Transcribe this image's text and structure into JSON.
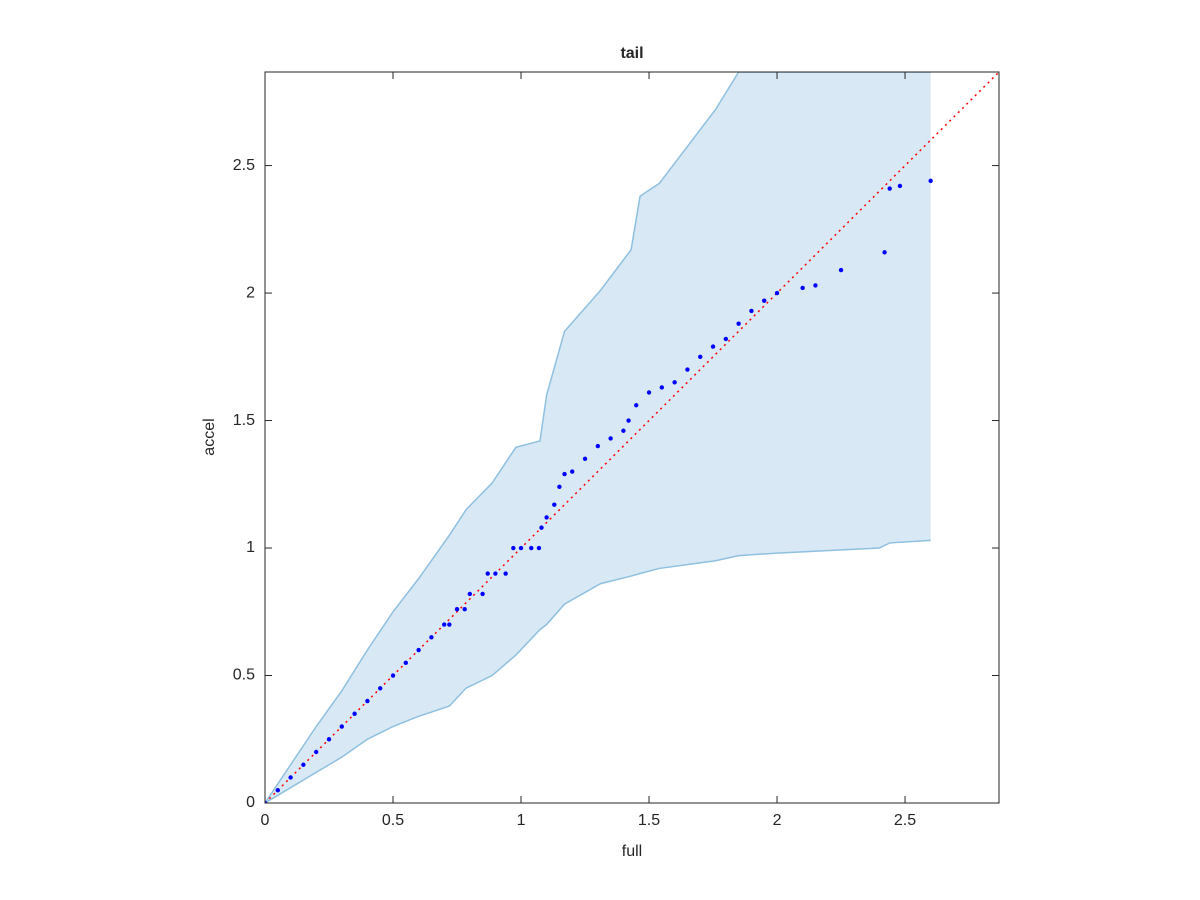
{
  "chart_data": {
    "type": "scatter",
    "title": "tail",
    "xlabel": "full",
    "ylabel": "accel",
    "xlim": [
      0,
      2.867
    ],
    "ylim": [
      0,
      2.867
    ],
    "xticks": [
      0,
      0.5,
      1,
      1.5,
      2,
      2.5
    ],
    "yticks": [
      0,
      0.5,
      1,
      1.5,
      2,
      2.5
    ],
    "series": [
      {
        "color": "#0000ff",
        "x": [
          0,
          0.05,
          0.1,
          0.15,
          0.2,
          0.25,
          0.3,
          0.35,
          0.4,
          0.45,
          0.5,
          0.55,
          0.6,
          0.65,
          0.7,
          0.72,
          0.75,
          0.78,
          0.8,
          0.85,
          0.87,
          0.9,
          0.94,
          0.97,
          1.0,
          1.04,
          1.07,
          1.08,
          1.1,
          1.13,
          1.15,
          1.17,
          1.2,
          1.25,
          1.3,
          1.35,
          1.4,
          1.42,
          1.45,
          1.5,
          1.55,
          1.6,
          1.65,
          1.7,
          1.75,
          1.8,
          1.85,
          1.9,
          1.95,
          2.0,
          2.1,
          2.15,
          2.25,
          2.42,
          2.44,
          2.48,
          2.6
        ],
        "values": [
          0,
          0.05,
          0.1,
          0.15,
          0.2,
          0.25,
          0.3,
          0.35,
          0.4,
          0.45,
          0.5,
          0.55,
          0.6,
          0.65,
          0.7,
          0.7,
          0.76,
          0.76,
          0.82,
          0.82,
          0.9,
          0.9,
          0.9,
          1.0,
          1.0,
          1.0,
          1.0,
          1.08,
          1.12,
          1.17,
          1.24,
          1.29,
          1.3,
          1.35,
          1.4,
          1.43,
          1.46,
          1.5,
          1.56,
          1.61,
          1.63,
          1.65,
          1.7,
          1.75,
          1.79,
          1.82,
          1.88,
          1.93,
          1.97,
          2.0,
          2.02,
          2.03,
          2.09,
          2.16,
          2.41,
          2.42,
          2.44
        ]
      }
    ],
    "band": {
      "color": "#8fc0e0",
      "fill": "#d8e8f4",
      "x": [
        0,
        0.1,
        0.2,
        0.3,
        0.4,
        0.5,
        0.6,
        0.72,
        0.785,
        0.887,
        0.98,
        1.074,
        1.1,
        1.17,
        1.31,
        1.43,
        1.465,
        1.54,
        1.76,
        1.85,
        2.0,
        2.4,
        2.44,
        2.6
      ],
      "upper": [
        0,
        0.15,
        0.3,
        0.44,
        0.6,
        0.75,
        0.88,
        1.05,
        1.15,
        1.255,
        1.395,
        1.42,
        1.6,
        1.85,
        2.01,
        2.17,
        2.38,
        2.43,
        2.72,
        2.867,
        2.867,
        2.867,
        2.867,
        2.867
      ],
      "lower": [
        0,
        0.06,
        0.12,
        0.18,
        0.25,
        0.3,
        0.34,
        0.38,
        0.45,
        0.5,
        0.58,
        0.68,
        0.7,
        0.78,
        0.86,
        0.89,
        0.9,
        0.92,
        0.95,
        0.97,
        0.98,
        1.0,
        1.02,
        1.03
      ]
    },
    "reference_line": {
      "color": "#ff0000",
      "style": "dotted"
    }
  }
}
